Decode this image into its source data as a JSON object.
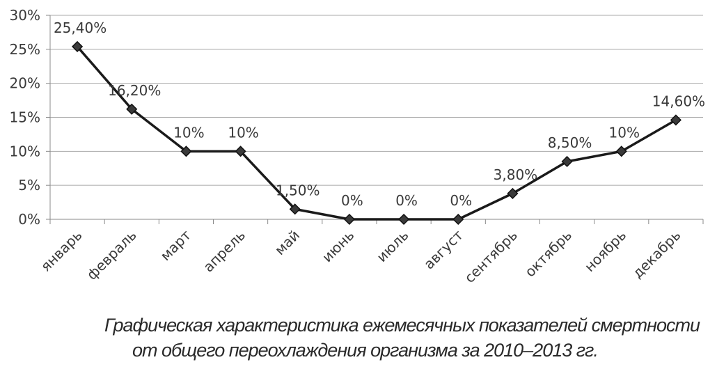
{
  "chart_data": {
    "type": "line",
    "title": "",
    "xlabel": "",
    "ylabel": "",
    "ylim": [
      0,
      30
    ],
    "yticks": [
      "0%",
      "5%",
      "10%",
      "15%",
      "20%",
      "25%",
      "30%"
    ],
    "grid": true,
    "legend": "none",
    "categories": [
      "январь",
      "февраль",
      "март",
      "апрель",
      "май",
      "июнь",
      "июль",
      "август",
      "сентябрь",
      "октябрь",
      "ноябрь",
      "декабрь"
    ],
    "series": [
      {
        "values": [
          25.4,
          16.2,
          10,
          10,
          1.5,
          0,
          0,
          0,
          3.8,
          8.5,
          10,
          14.6
        ],
        "labels": [
          "25,40%",
          "16,20%",
          "10%",
          "10%",
          "1,50%",
          "0%",
          "0%",
          "0%",
          "3,80%",
          "8,50%",
          "10%",
          "14,60%"
        ],
        "color": "#1a1a1a",
        "marker": "diamond",
        "marker_color": "#3a3a3a"
      }
    ]
  },
  "caption": {
    "line1": "Графическая характеристика ежемесячных показателей смертности",
    "line2": "от общего переохлаждения организма за 2010–2013 гг."
  }
}
